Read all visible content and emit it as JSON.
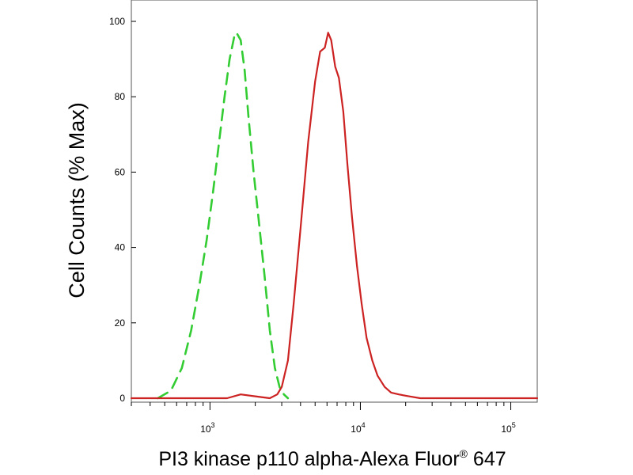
{
  "chart_data": {
    "type": "line",
    "title": "",
    "xlabel": "PI3 kinase p110 alpha-Alexa Fluor",
    "xlabel_superscript": "®",
    "xlabel_suffix": " 647",
    "ylabel": "Cell Counts (% Max)",
    "x_scale": "log",
    "xlim": [
      300,
      150000
    ],
    "ylim": [
      0,
      100
    ],
    "grid": false,
    "legend": "none",
    "y_ticks": [
      0,
      20,
      40,
      60,
      80,
      100
    ],
    "y_tick_labels": [
      "0",
      "20",
      "40",
      "60",
      "80",
      "100"
    ],
    "x_major_ticks": [
      1000,
      10000,
      100000
    ],
    "x_tick_labels": [
      {
        "base": "10",
        "exp": "3"
      },
      {
        "base": "10",
        "exp": "4"
      },
      {
        "base": "10",
        "exp": "5"
      }
    ],
    "series": [
      {
        "color": "#33cc33",
        "dash": "dashed",
        "x": [
          450,
          550,
          650,
          750,
          850,
          950,
          1050,
          1150,
          1250,
          1350,
          1450,
          1500,
          1600,
          1700,
          1800,
          1950,
          2100,
          2300,
          2500,
          2700,
          2900,
          3100,
          3300
        ],
        "y": [
          0,
          2,
          8,
          18,
          30,
          42,
          55,
          68,
          80,
          90,
          96,
          97,
          95,
          87,
          75,
          60,
          48,
          33,
          18,
          8,
          3,
          1,
          0
        ]
      },
      {
        "color": "#cc2222",
        "dash": "solid",
        "x": [
          300,
          800,
          1300,
          1600,
          2000,
          2500,
          2800,
          3000,
          3300,
          3600,
          4000,
          4500,
          5000,
          5400,
          5800,
          6100,
          6400,
          6800,
          7200,
          7700,
          8200,
          8800,
          9500,
          10200,
          11000,
          12000,
          13000,
          14500,
          16000,
          18000,
          21000,
          25000,
          40000,
          150000
        ],
        "y": [
          0,
          0,
          0,
          1,
          0.5,
          0,
          1,
          3,
          10,
          25,
          45,
          68,
          84,
          92,
          93,
          97,
          95,
          88,
          85,
          76,
          62,
          48,
          35,
          25,
          16,
          10,
          6,
          3,
          1.5,
          1,
          0.5,
          0,
          0,
          0
        ]
      }
    ]
  }
}
